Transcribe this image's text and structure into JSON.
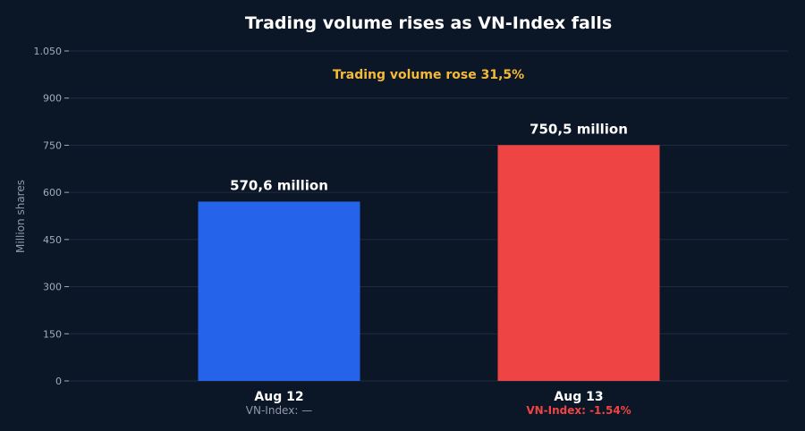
{
  "chart_data": {
    "type": "bar",
    "title": "Trading volume rises as VN-Index falls",
    "ylabel": "Million shares",
    "xlabel": "",
    "ylim": [
      0,
      1050
    ],
    "yticks": [
      0,
      150,
      300,
      450,
      600,
      750,
      900,
      1050
    ],
    "ytick_labels": [
      "0",
      "150",
      "300",
      "450",
      "600",
      "750",
      "900",
      "1.050"
    ],
    "grid": true,
    "categories": [
      "Aug 12",
      "Aug 13"
    ],
    "values": [
      570.6,
      750.5
    ],
    "value_labels": [
      "570,6 million",
      "750,5 million"
    ],
    "bar_colors": [
      "#2563eb",
      "#ef4444"
    ],
    "sublabels": [
      {
        "text": "VN-Index: —",
        "tone": "neutral"
      },
      {
        "text": "VN-Index: -1.54%",
        "tone": "negative"
      }
    ],
    "annotation": "Trading volume rose 31,5%"
  },
  "colors": {
    "background": "#0b1626",
    "annotation": "#f5b93a",
    "negative": "#ef4444"
  }
}
